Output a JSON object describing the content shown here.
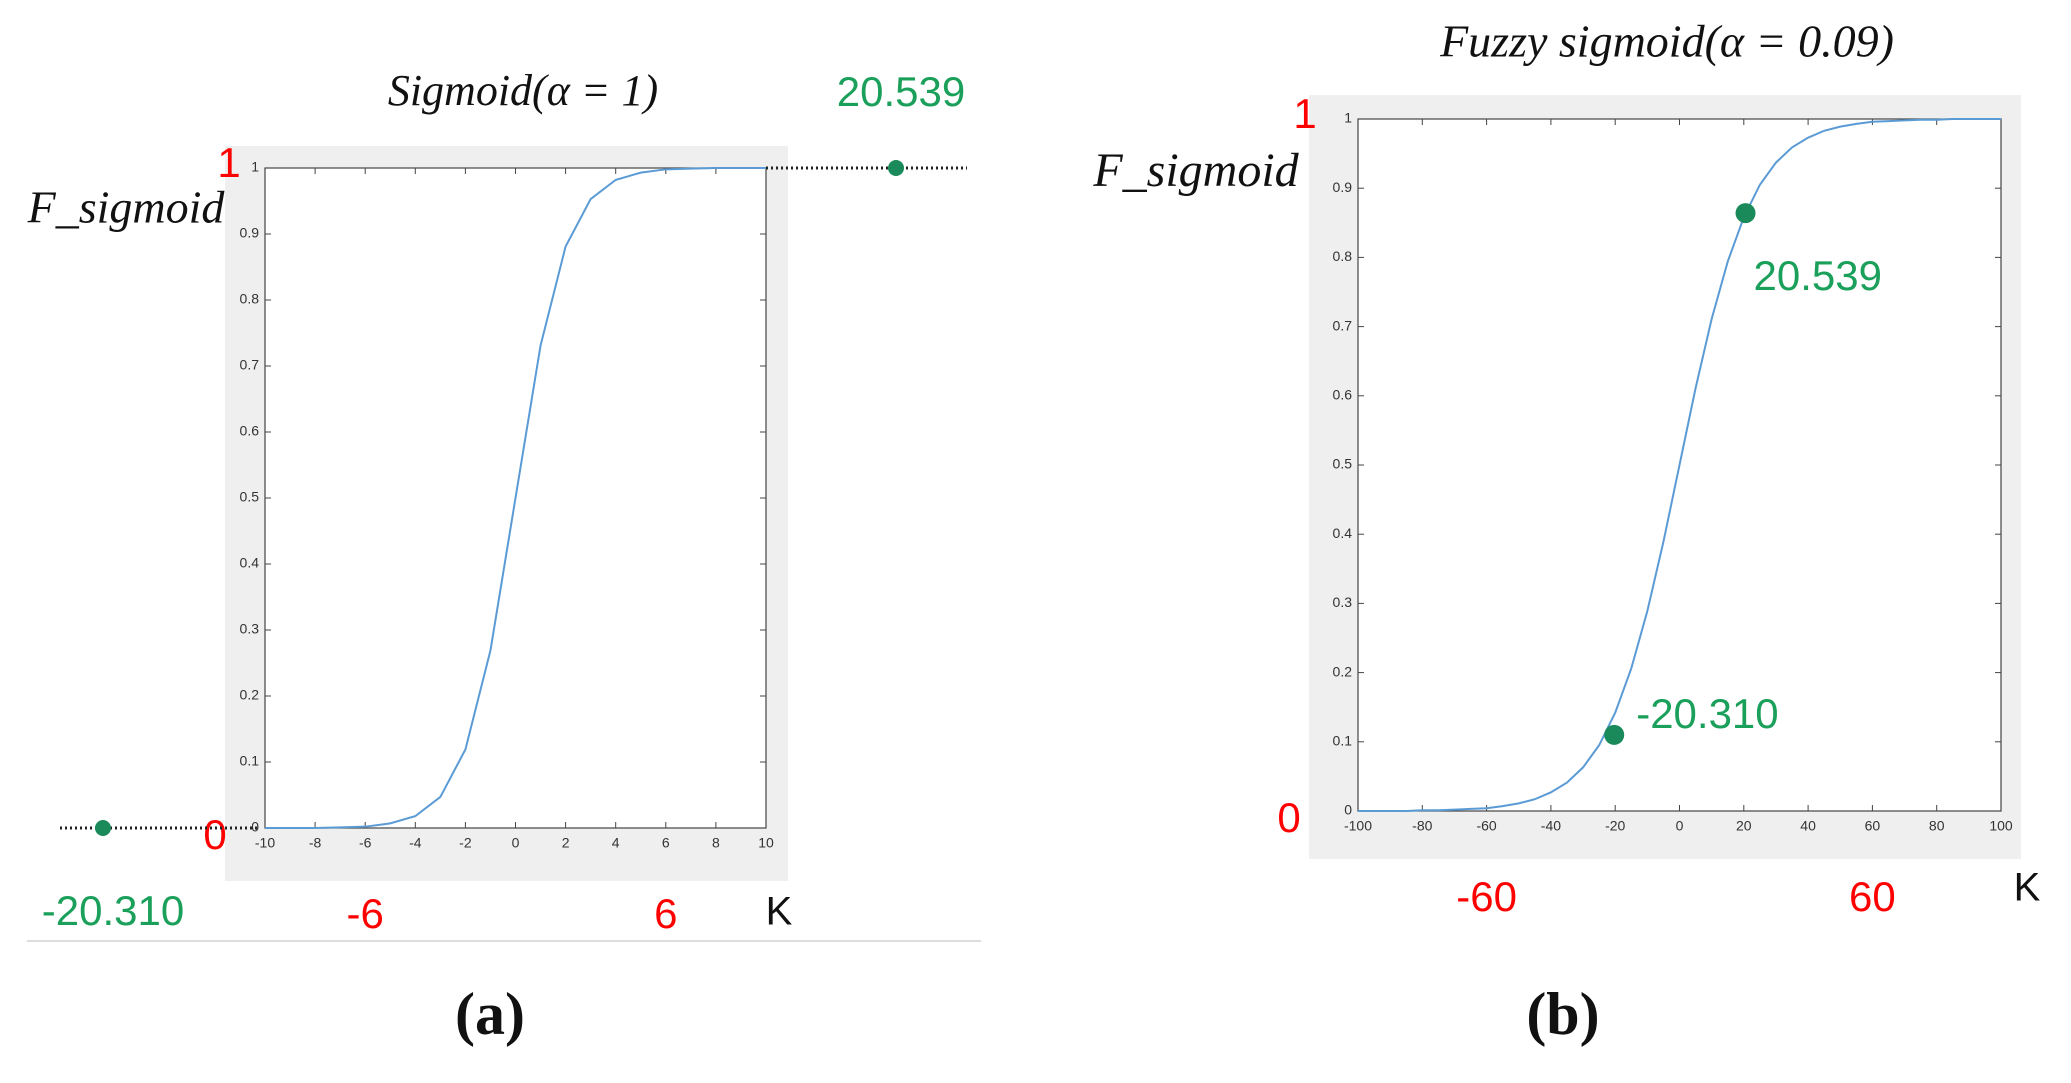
{
  "chart_data": [
    {
      "type": "line",
      "title": "Sigmoid(α = 1)",
      "y_label": "F_sigmoid",
      "x_label": "K",
      "caption": "(a)",
      "x": [
        -10,
        -9,
        -8,
        -7,
        -6,
        -5,
        -4,
        -3,
        -2,
        -1,
        0,
        1,
        2,
        3,
        4,
        5,
        6,
        7,
        8,
        9,
        10
      ],
      "values": [
        0,
        0,
        0,
        0.001,
        0.002,
        0.007,
        0.018,
        0.047,
        0.119,
        0.269,
        0.5,
        0.731,
        0.881,
        0.953,
        0.982,
        0.993,
        0.998,
        0.999,
        1,
        1,
        1
      ],
      "color": "#5b9bd5",
      "xlim": [
        -10,
        10
      ],
      "xticks": [
        -10,
        -8,
        -6,
        -4,
        -2,
        0,
        2,
        4,
        6,
        8,
        10
      ],
      "ylim": [
        0,
        1
      ],
      "yticks": [
        0,
        0.1,
        0.2,
        0.3,
        0.4,
        0.5,
        0.6,
        0.7,
        0.8,
        0.9,
        1
      ],
      "x_marks": [
        -6,
        6
      ],
      "y_marks": [
        1,
        0
      ],
      "points": [
        {
          "x": -20.31,
          "y": 0,
          "label": "-20.310"
        },
        {
          "x": 20.539,
          "y": 1,
          "label": "20.539"
        }
      ],
      "point_color": "#1a8a5a"
    },
    {
      "type": "line",
      "title": "Fuzzy sigmoid(α = 0.09)",
      "y_label": "F_sigmoid",
      "x_label": "K",
      "caption": "(b)",
      "x": [
        -100,
        -95,
        -90,
        -85,
        -80,
        -75,
        -70,
        -65,
        -60,
        -55,
        -50,
        -45,
        -40,
        -35,
        -30,
        -25,
        -20,
        -15,
        -10,
        -5,
        0,
        5,
        10,
        15,
        20,
        25,
        30,
        35,
        40,
        45,
        50,
        55,
        60,
        65,
        70,
        75,
        80,
        85,
        90,
        95,
        100
      ],
      "values": [
        0,
        0,
        0,
        0,
        0.001,
        0.001,
        0.002,
        0.003,
        0.004,
        0.007,
        0.011,
        0.017,
        0.027,
        0.041,
        0.063,
        0.095,
        0.142,
        0.206,
        0.289,
        0.389,
        0.5,
        0.611,
        0.711,
        0.794,
        0.858,
        0.905,
        0.937,
        0.959,
        0.973,
        0.983,
        0.989,
        0.993,
        0.996,
        0.997,
        0.998,
        0.999,
        0.999,
        1,
        1,
        1,
        1
      ],
      "color": "#5b9bd5",
      "xlim": [
        -100,
        100
      ],
      "xticks": [
        -100,
        -80,
        -60,
        -40,
        -20,
        0,
        20,
        40,
        60,
        80,
        100
      ],
      "ylim": [
        0,
        1
      ],
      "yticks": [
        0,
        0.1,
        0.2,
        0.3,
        0.4,
        0.5,
        0.6,
        0.7,
        0.8,
        0.9,
        1
      ],
      "x_marks": [
        -60,
        60
      ],
      "y_marks": [
        1,
        0
      ],
      "points": [
        {
          "x": -20.31,
          "y": 0.11,
          "label": "-20.310"
        },
        {
          "x": 20.539,
          "y": 0.864,
          "label": "20.539"
        }
      ],
      "point_color": "#1a8a5a"
    }
  ]
}
